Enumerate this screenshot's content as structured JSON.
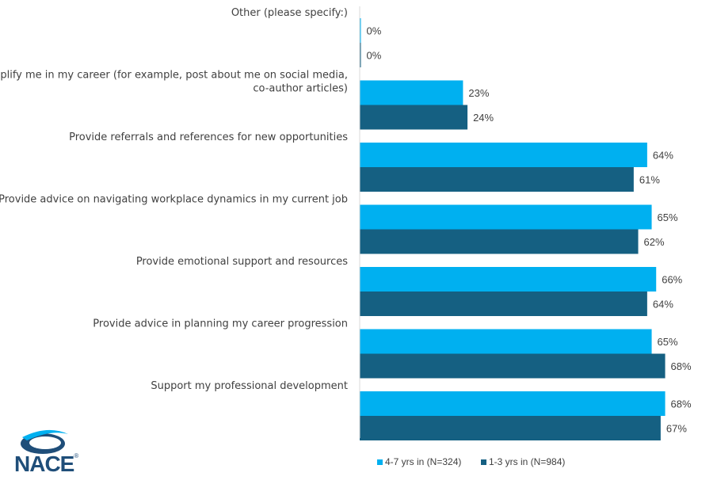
{
  "chart_data": {
    "type": "bar",
    "orientation": "horizontal",
    "categories": [
      "Other (please specify:)",
      "Amplify me in my career (for example, post about me on social media, co-author articles)",
      "Provide referrals and references for new opportunities",
      "Provide advice on navigating workplace dynamics in my current job",
      "Provide emotional support and resources",
      "Provide advice in planning my career progression",
      "Support my professional development"
    ],
    "category_lines": [
      [
        "Other (please specify:)"
      ],
      [
        "Amplify me in my career (for example, post about me on social media,",
        "co-author articles)"
      ],
      [
        "Provide referrals and references for new opportunities"
      ],
      [
        "Provide advice on navigating workplace dynamics in my current job"
      ],
      [
        "Provide emotional support and resources"
      ],
      [
        "Provide advice in planning my career progression"
      ],
      [
        "Support my professional development"
      ]
    ],
    "series": [
      {
        "name": "4-7 yrs in (N=324)",
        "color": "#00b0f0",
        "values": [
          0,
          23,
          64,
          65,
          66,
          65,
          68
        ],
        "labels": [
          "0%",
          "23%",
          "64%",
          "65%",
          "66%",
          "65%",
          "68%"
        ]
      },
      {
        "name": "1-3 yrs in (N=984)",
        "color": "#156082",
        "values": [
          0,
          24,
          61,
          62,
          64,
          68,
          67
        ],
        "labels": [
          "0%",
          "24%",
          "61%",
          "62%",
          "64%",
          "68%",
          "67%"
        ]
      }
    ],
    "xlim": [
      0,
      72
    ],
    "title": "",
    "xlabel": "",
    "ylabel": "",
    "grid": false,
    "legend": "bottom-right"
  },
  "logo": {
    "text": "NACE",
    "mark": "®",
    "icon": "nace-swoosh-icon"
  }
}
